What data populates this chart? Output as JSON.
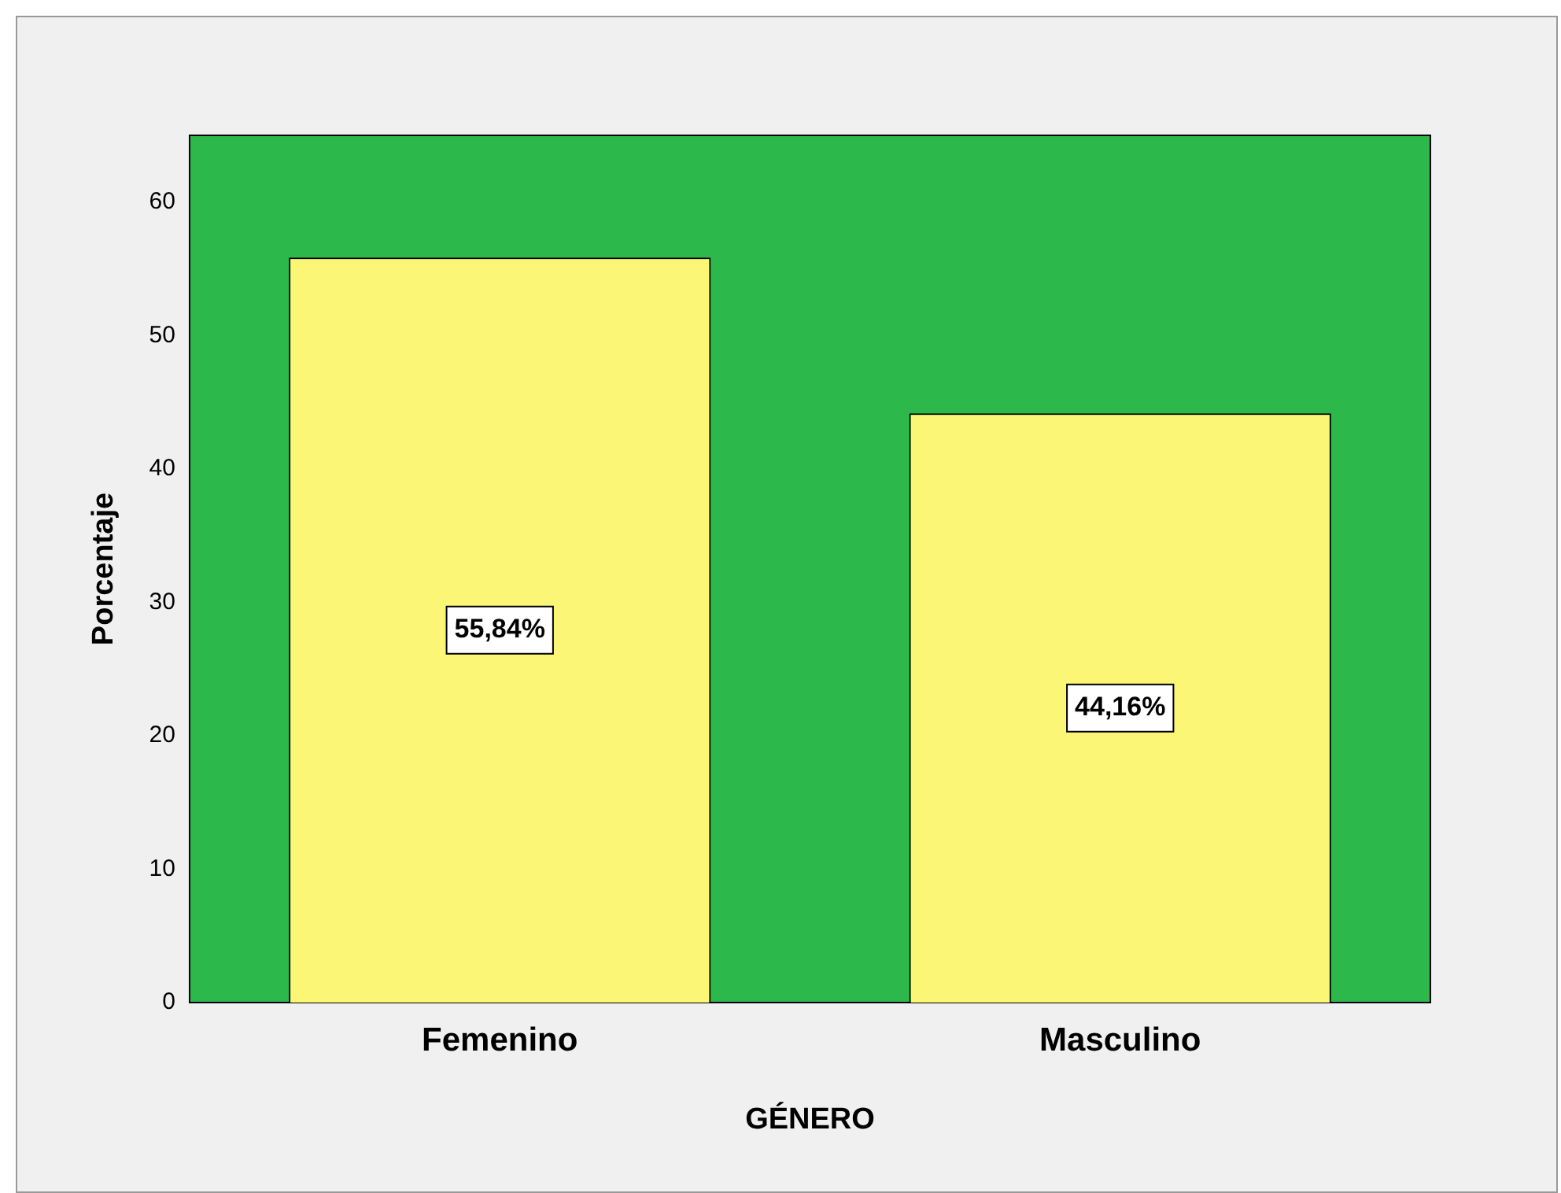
{
  "chart_data": {
    "type": "bar",
    "xlabel": "GÉNERO",
    "ylabel": "Porcentaje",
    "categories": [
      "Femenino",
      "Masculino"
    ],
    "values": [
      55.84,
      44.16
    ],
    "value_labels": [
      "55,84%",
      "44,16%"
    ],
    "color": "#fbf675",
    "ylim": [
      0,
      65
    ],
    "yticks": [
      0,
      10,
      20,
      30,
      40,
      50,
      60
    ],
    "bands": [
      {
        "axis": "y",
        "from": 0,
        "to": 65,
        "color": "#2db84b"
      }
    ],
    "grid": false,
    "legend": false
  }
}
